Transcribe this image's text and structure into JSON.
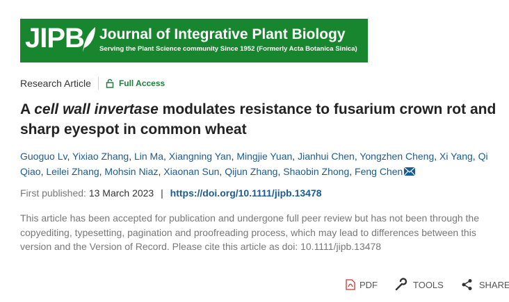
{
  "banner": {
    "logo": "JIPB",
    "title": "Journal of Integrative Plant Biology",
    "subtitle": "Serving the Plant Science community Since 1952 (Formerly Acta Botanica Sinica)"
  },
  "article_type": "Research Article",
  "access": "Full Access",
  "title": {
    "before": "A ",
    "italic": "cell wall invertase",
    "after": " modulates resistance to fusarium crown rot and sharp eyespot in common wheat"
  },
  "authors": [
    "Guoguo Lv",
    "Yixiao Zhang",
    "Lin Ma",
    "Xiangning Yan",
    "Mingjie Yuan",
    "Jianhui Chen",
    "Yongzhen Cheng",
    "Xi Yang",
    "Qi Qiao",
    "Leilei Zhang",
    "Mohsin Niaz",
    "Xiaonan Sun",
    "Qijun Zhang",
    "Shaobin Zhong",
    "Feng Chen"
  ],
  "author_separator": ", ",
  "published": {
    "label": "First published:",
    "date": "13 March 2023",
    "separator": "|",
    "doi": "https://doi.org/10.1111/jipb.13478"
  },
  "note": "This article has been accepted for publication and undergone full peer review but has not been through the copyediting, typesetting, pagination and proofreading process, which may lead to differences between this version and the Version of Record. Please cite this article as doi: 10.1111/jipb.13478",
  "actions": {
    "pdf": "PDF",
    "tools": "TOOLS",
    "share": "SHARE"
  }
}
